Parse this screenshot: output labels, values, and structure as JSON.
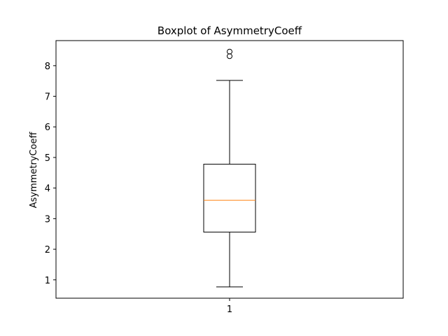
{
  "chart_data": {
    "type": "boxplot",
    "title": "Boxplot of AsymmetryCoeff",
    "xlabel": "",
    "ylabel": "AsymmetryCoeff",
    "categories": [
      "1"
    ],
    "ylim": [
      0.4,
      8.82
    ],
    "yticks": [
      1,
      2,
      3,
      4,
      5,
      6,
      7,
      8
    ],
    "boxes": [
      {
        "category": "1",
        "whisker_low": 0.77,
        "q1": 2.56,
        "median": 3.6,
        "q3": 4.78,
        "whisker_high": 7.52,
        "outliers": [
          8.31,
          8.46
        ]
      }
    ],
    "colors": {
      "box": "#000000",
      "median": "#ff7f0e",
      "whisker": "#000000",
      "outlier": "#000000"
    },
    "grid": false
  }
}
